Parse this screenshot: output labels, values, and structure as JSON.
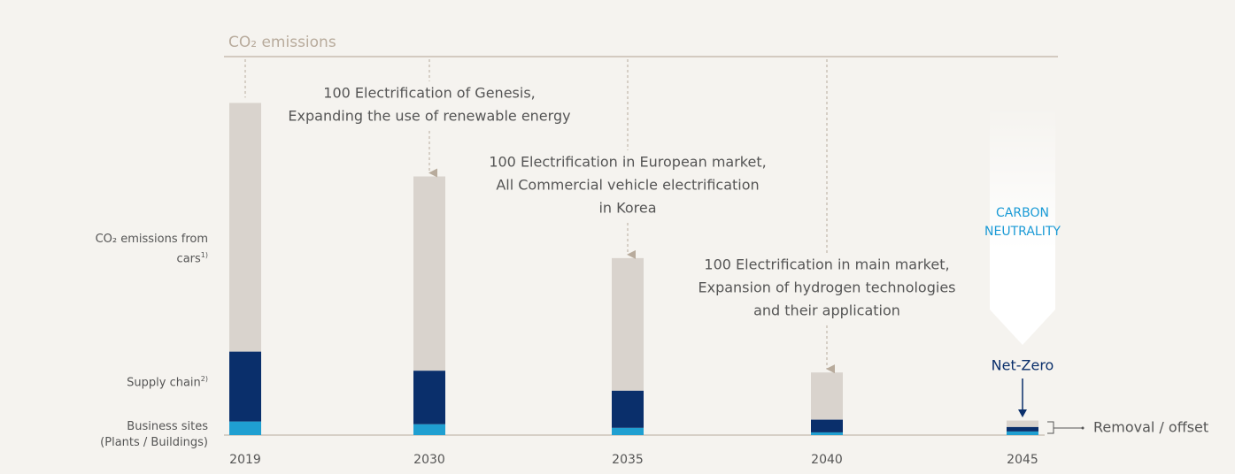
{
  "chart_data": {
    "type": "stacked_bar",
    "title": "CO₂ emissions",
    "categories": [
      "2019",
      "2030",
      "2035",
      "2040",
      "2045"
    ],
    "series": [
      {
        "name": "Business sites (Plants / Buildings)",
        "color": "#1f9fd1",
        "values": [
          15,
          12,
          8,
          3,
          4
        ]
      },
      {
        "name": "Supply chain",
        "footnote": "2)",
        "color": "#0a2f6b",
        "values": [
          77,
          59,
          41,
          14,
          5
        ]
      },
      {
        "name": "CO₂ emissions from cars",
        "footnote": "1)",
        "color": "#d9d3cd",
        "values": [
          274,
          214,
          146,
          52,
          7
        ]
      }
    ],
    "ylim": [
      0,
      380
    ],
    "annotations": [
      {
        "category": "2030",
        "lines": [
          "100 Electrification of Genesis,",
          "Expanding the use of renewable energy"
        ]
      },
      {
        "category": "2035",
        "lines": [
          "100 Electrification in European market,",
          "All Commercial vehicle electrification",
          "in Korea"
        ]
      },
      {
        "category": "2040",
        "lines": [
          "100 Electrification in main market,",
          "Expansion of hydrogen technologies",
          "and their application"
        ]
      }
    ],
    "highlight": [
      "CARBON",
      "NEUTRALITY"
    ],
    "net_zero": "Net-Zero",
    "offset_label": "Removal / offset"
  }
}
